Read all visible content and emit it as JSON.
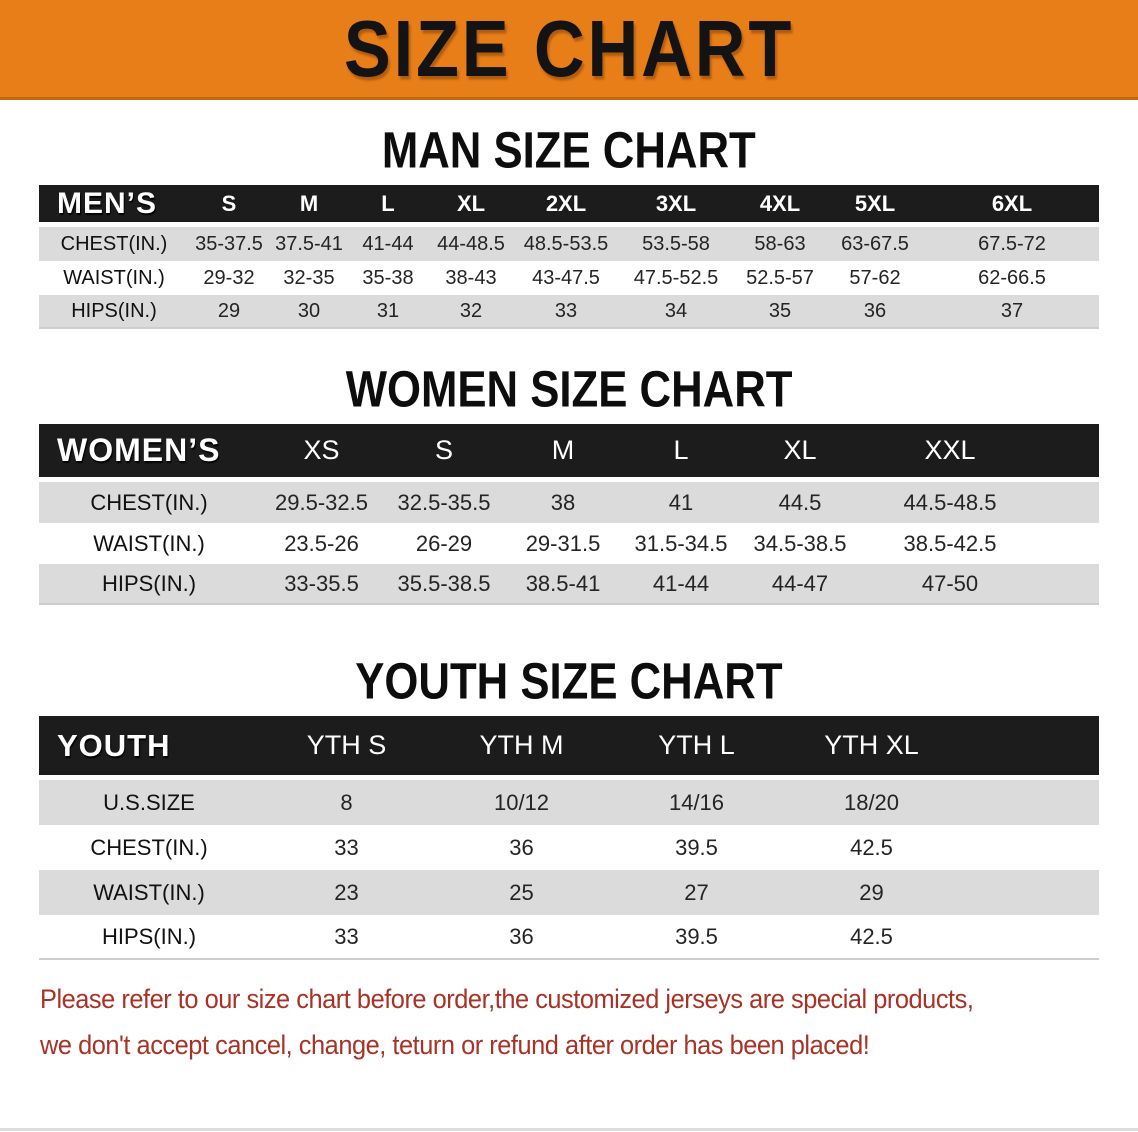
{
  "header": {
    "title": "SIZE CHART"
  },
  "sections": {
    "men": {
      "heading": "MAN SIZE CHART",
      "corner": "MEN’S",
      "sizes": [
        "S",
        "M",
        "L",
        "XL",
        "2XL",
        "3XL",
        "4XL",
        "5XL",
        "6XL"
      ],
      "rows": [
        {
          "label": "CHEST(IN.)",
          "values": [
            "35-37.5",
            "37.5-41",
            "41-44",
            "44-48.5",
            "48.5-53.5",
            "53.5-58",
            "58-63",
            "63-67.5",
            "67.5-72"
          ]
        },
        {
          "label": "WAIST(IN.)",
          "values": [
            "29-32",
            "32-35",
            "35-38",
            "38-43",
            "43-47.5",
            "47.5-52.5",
            "52.5-57",
            "57-62",
            "62-66.5"
          ]
        },
        {
          "label": "HIPS(IN.)",
          "values": [
            "29",
            "30",
            "31",
            "32",
            "33",
            "34",
            "35",
            "36",
            "37"
          ]
        }
      ]
    },
    "women": {
      "heading": "WOMEN SIZE CHART",
      "corner": "WOMEN’S",
      "sizes": [
        "XS",
        "S",
        "M",
        "L",
        "XL",
        "XXL"
      ],
      "rows": [
        {
          "label": "CHEST(IN.)",
          "values": [
            "29.5-32.5",
            "32.5-35.5",
            "38",
            "41",
            "44.5",
            "44.5-48.5"
          ]
        },
        {
          "label": "WAIST(IN.)",
          "values": [
            "23.5-26",
            "26-29",
            "29-31.5",
            "31.5-34.5",
            "34.5-38.5",
            "38.5-42.5"
          ]
        },
        {
          "label": "HIPS(IN.)",
          "values": [
            "33-35.5",
            "35.5-38.5",
            "38.5-41",
            "41-44",
            "44-47",
            "47-50"
          ]
        }
      ]
    },
    "youth": {
      "heading": "YOUTH SIZE CHART",
      "corner": "YOUTH",
      "sizes": [
        "YTH S",
        "YTH M",
        "YTH L",
        "YTH XL"
      ],
      "rows": [
        {
          "label": "U.S.SIZE",
          "values": [
            "8",
            "10/12",
            "14/16",
            "18/20"
          ]
        },
        {
          "label": "CHEST(IN.)",
          "values": [
            "33",
            "36",
            "39.5",
            "42.5"
          ]
        },
        {
          "label": "WAIST(IN.)",
          "values": [
            "23",
            "25",
            "27",
            "29"
          ]
        },
        {
          "label": "HIPS(IN.)",
          "values": [
            "33",
            "36",
            "39.5",
            "42.5"
          ]
        }
      ]
    }
  },
  "footer": {
    "line1": "Please refer to our size chart before order,the customized jerseys are special products,",
    "line2": "we don't accept cancel, change, teturn or refund after order has been placed!"
  },
  "colors": {
    "orange": "#E87E18",
    "bar": "#1C1C1C",
    "row": "#DBDBDB",
    "red": "#A93226"
  }
}
